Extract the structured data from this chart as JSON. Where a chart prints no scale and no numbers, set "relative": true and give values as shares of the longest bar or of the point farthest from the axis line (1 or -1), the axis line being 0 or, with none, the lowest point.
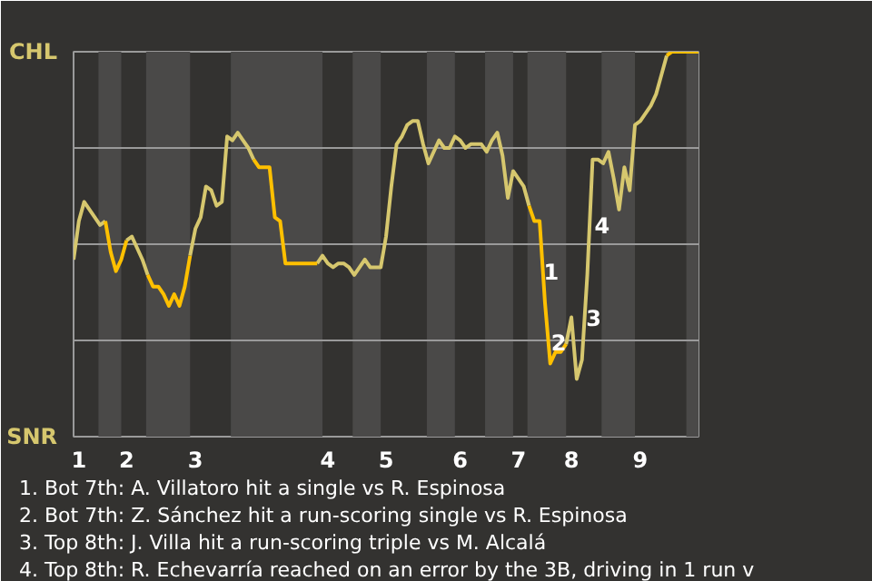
{
  "chart_data": {
    "type": "line",
    "relative": true,
    "categories": [
      null,
      "1",
      null,
      null,
      null,
      null,
      null,
      null,
      null,
      null,
      "2",
      null,
      null,
      null,
      null,
      null,
      null,
      null,
      null,
      null,
      null,
      null,
      null,
      "3",
      null,
      null,
      null,
      null,
      null,
      null,
      null,
      null,
      null,
      null,
      null,
      null,
      null,
      null,
      null,
      null,
      null,
      null,
      null,
      null,
      null,
      null,
      null,
      null,
      "4",
      null,
      null,
      null,
      null,
      null,
      null,
      null,
      null,
      null,
      null,
      "5",
      null,
      null,
      null,
      null,
      null,
      null,
      null,
      null,
      null,
      null,
      null,
      null,
      null,
      "6",
      null,
      null,
      null,
      null,
      null,
      null,
      null,
      null,
      null,
      null,
      "7",
      null,
      null,
      null,
      null,
      null,
      null,
      null,
      null,
      null,
      "8",
      null,
      null,
      null,
      null,
      null,
      null,
      null,
      null,
      null,
      null,
      null,
      null,
      "9",
      null,
      null,
      null,
      null,
      null,
      null,
      null,
      null,
      null,
      null,
      null
    ],
    "ref_lines": [
      {
        "axis": "y",
        "value": 0.25,
        "color": "#9a9a9a"
      },
      {
        "axis": "y",
        "value": 0.5,
        "color": "#9a9a9a"
      },
      {
        "axis": "y",
        "value": 0.75,
        "color": "#9a9a9a"
      }
    ],
    "series": [
      {
        "color": "#d6c76e",
        "values": [
          0.46,
          0.56,
          0.61,
          0.59,
          0.57,
          0.55,
          0.56,
          null,
          null,
          null,
          0.51,
          0.52,
          0.49,
          0.46,
          0.42,
          null,
          null,
          null,
          null,
          null,
          null,
          null,
          0.47,
          0.54,
          0.57,
          0.65,
          0.64,
          0.6,
          0.61,
          0.78,
          0.77,
          0.79,
          0.77,
          0.75,
          0.72,
          null,
          null,
          null,
          null,
          null,
          null,
          null,
          null,
          null,
          null,
          null,
          0.45,
          0.47,
          0.45,
          0.44,
          0.45,
          0.45,
          0.44,
          0.42,
          0.44,
          0.46,
          0.44,
          0.44,
          0.44,
          0.52,
          0.65,
          0.76,
          0.78,
          0.81,
          0.82,
          0.82,
          0.76,
          0.71,
          0.74,
          0.77,
          0.75,
          0.75,
          0.78,
          0.77,
          0.75,
          0.76,
          0.76,
          0.76,
          0.74,
          0.77,
          0.79,
          0.73,
          0.62,
          0.69,
          0.67,
          0.65,
          0.6,
          null,
          null,
          null,
          null,
          null,
          null,
          0.24,
          0.31,
          0.15,
          0.2,
          0.42,
          0.72,
          0.72,
          0.71,
          0.74,
          0.67,
          0.59,
          0.7,
          0.64,
          0.81,
          0.82,
          0.84,
          0.86,
          0.89,
          0.94,
          0.99,
          null,
          null,
          null,
          null,
          null,
          null
        ],
        "value_labels": [
          null,
          null,
          null,
          null,
          null,
          null,
          null,
          null,
          null,
          null,
          null,
          null,
          null,
          null,
          null,
          null,
          null,
          null,
          null,
          null,
          null,
          null,
          null,
          null,
          null,
          null,
          null,
          null,
          null,
          null,
          null,
          null,
          null,
          null,
          null,
          null,
          null,
          null,
          null,
          null,
          null,
          null,
          null,
          null,
          null,
          null,
          null,
          null,
          null,
          null,
          null,
          null,
          null,
          null,
          null,
          null,
          null,
          null,
          null,
          null,
          null,
          null,
          null,
          null,
          null,
          null,
          null,
          null,
          null,
          null,
          null,
          null,
          null,
          null,
          null,
          null,
          null,
          null,
          null,
          null,
          null,
          null,
          null,
          null,
          null,
          null,
          null,
          null,
          null,
          null,
          null,
          null,
          null,
          null,
          null,
          null,
          null,
          null,
          null,
          null,
          null,
          null,
          null,
          null,
          null,
          null,
          null,
          null,
          null,
          null,
          null,
          null,
          null,
          null,
          null,
          null,
          null,
          null,
          null
        ]
      },
      {
        "color": "#ffc000",
        "values": [
          null,
          null,
          null,
          null,
          null,
          null,
          0.56,
          0.48,
          0.43,
          0.46,
          0.51,
          null,
          null,
          null,
          0.42,
          0.39,
          0.39,
          0.37,
          0.34,
          0.37,
          0.34,
          0.39,
          0.47,
          null,
          null,
          null,
          null,
          null,
          null,
          null,
          null,
          null,
          null,
          null,
          0.72,
          0.7,
          0.7,
          0.7,
          0.57,
          0.56,
          0.45,
          0.45,
          0.45,
          0.45,
          0.45,
          0.45,
          0.45,
          null,
          null,
          null,
          null,
          null,
          null,
          null,
          null,
          null,
          null,
          null,
          null,
          null,
          null,
          null,
          null,
          null,
          null,
          null,
          null,
          null,
          null,
          null,
          null,
          null,
          null,
          null,
          null,
          null,
          null,
          null,
          null,
          null,
          null,
          null,
          null,
          null,
          null,
          null,
          0.6,
          0.56,
          0.56,
          0.35,
          0.19,
          0.22,
          0.22,
          0.24,
          null,
          null,
          null,
          null,
          null,
          null,
          null,
          null,
          null,
          null,
          null,
          null,
          null,
          null,
          null,
          null,
          null,
          null,
          0.99,
          1.0,
          1.0,
          1.0,
          1.0,
          1.0,
          1.0
        ],
        "value_labels": [
          null,
          null,
          null,
          null,
          null,
          null,
          null,
          null,
          null,
          null,
          null,
          null,
          null,
          null,
          null,
          null,
          null,
          null,
          null,
          null,
          null,
          null,
          null,
          null,
          null,
          null,
          null,
          null,
          null,
          null,
          null,
          null,
          null,
          null,
          null,
          null,
          null,
          null,
          null,
          null,
          null,
          null,
          null,
          null,
          null,
          null,
          null,
          null,
          null,
          null,
          null,
          null,
          null,
          null,
          null,
          null,
          null,
          null,
          null,
          null,
          null,
          null,
          null,
          null,
          null,
          null,
          null,
          null,
          null,
          null,
          null,
          null,
          null,
          null,
          null,
          null,
          null,
          null,
          null,
          null,
          null,
          null,
          null,
          null,
          null,
          null,
          null,
          null,
          null,
          null,
          null,
          null,
          null,
          null,
          null,
          null,
          null,
          null,
          null,
          null,
          null,
          null,
          null,
          null,
          null,
          null,
          null,
          null,
          null,
          null,
          null,
          null,
          null,
          null,
          null,
          null,
          null,
          null,
          null
        ]
      }
    ],
    "annotations": [
      "CHL",
      "SNR",
      "1",
      "2",
      "3",
      "4",
      "1. Bot 7th: A. Villatoro hit a single vs R. Espinosa",
      "2. Bot 7th: Z. Sánchez hit a run-scoring single vs R. Espinosa",
      "3. Top 8th: J. Villa hit a run-scoring triple vs M. Alcalá",
      "4. Top 8th: R. Echevarría reached on an error by the 3B, driving in 1 run v"
    ]
  }
}
